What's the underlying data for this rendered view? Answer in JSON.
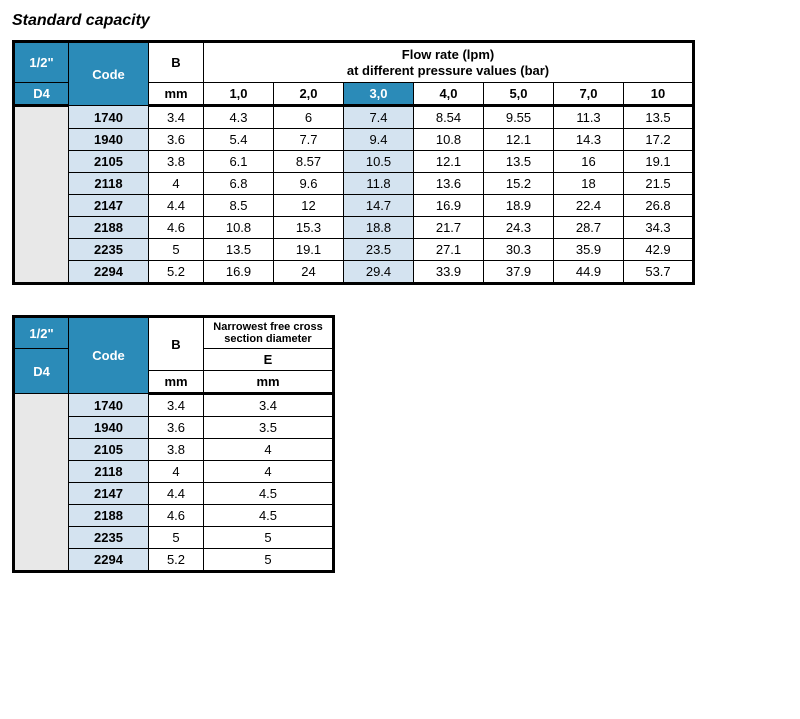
{
  "title": "Standard capacity",
  "colors": {
    "header_blue": "#2b8bb8",
    "code_bg": "#d4e3f0",
    "highlight_bg": "#d4e3f0",
    "stub_bg": "#e8e8e8",
    "border": "#000000",
    "text": "#000000",
    "header_text": "#ffffff"
  },
  "table1": {
    "size_top": "1/2\"",
    "size_bottom": "D4",
    "code_label": "Code",
    "b_label": "B",
    "b_unit": "mm",
    "flow_title_1": "Flow rate (lpm)",
    "flow_title_2": "at different pressure values (bar)",
    "pressures": [
      "1,0",
      "2,0",
      "3,0",
      "4,0",
      "5,0",
      "7,0",
      "10"
    ],
    "highlight_pressure_index": 2,
    "rows": [
      {
        "code": "1740",
        "b": "3.4",
        "vals": [
          "4.3",
          "6",
          "7.4",
          "8.54",
          "9.55",
          "11.3",
          "13.5"
        ]
      },
      {
        "code": "1940",
        "b": "3.6",
        "vals": [
          "5.4",
          "7.7",
          "9.4",
          "10.8",
          "12.1",
          "14.3",
          "17.2"
        ]
      },
      {
        "code": "2105",
        "b": "3.8",
        "vals": [
          "6.1",
          "8.57",
          "10.5",
          "12.1",
          "13.5",
          "16",
          "19.1"
        ]
      },
      {
        "code": "2118",
        "b": "4",
        "vals": [
          "6.8",
          "9.6",
          "11.8",
          "13.6",
          "15.2",
          "18",
          "21.5"
        ]
      },
      {
        "code": "2147",
        "b": "4.4",
        "vals": [
          "8.5",
          "12",
          "14.7",
          "16.9",
          "18.9",
          "22.4",
          "26.8"
        ]
      },
      {
        "code": "2188",
        "b": "4.6",
        "vals": [
          "10.8",
          "15.3",
          "18.8",
          "21.7",
          "24.3",
          "28.7",
          "34.3"
        ]
      },
      {
        "code": "2235",
        "b": "5",
        "vals": [
          "13.5",
          "19.1",
          "23.5",
          "27.1",
          "30.3",
          "35.9",
          "42.9"
        ]
      },
      {
        "code": "2294",
        "b": "5.2",
        "vals": [
          "16.9",
          "24",
          "29.4",
          "33.9",
          "37.9",
          "44.9",
          "53.7"
        ]
      }
    ]
  },
  "table2": {
    "size_top": "1/2\"",
    "size_bottom": "D4",
    "code_label": "Code",
    "b_label": "B",
    "b_unit": "mm",
    "e_title": "Narrowest free cross section diameter",
    "e_label": "E",
    "e_unit": "mm",
    "rows": [
      {
        "code": "1740",
        "b": "3.4",
        "e": "3.4"
      },
      {
        "code": "1940",
        "b": "3.6",
        "e": "3.5"
      },
      {
        "code": "2105",
        "b": "3.8",
        "e": "4"
      },
      {
        "code": "2118",
        "b": "4",
        "e": "4"
      },
      {
        "code": "2147",
        "b": "4.4",
        "e": "4.5"
      },
      {
        "code": "2188",
        "b": "4.6",
        "e": "4.5"
      },
      {
        "code": "2235",
        "b": "5",
        "e": "5"
      },
      {
        "code": "2294",
        "b": "5.2",
        "e": "5"
      }
    ]
  }
}
